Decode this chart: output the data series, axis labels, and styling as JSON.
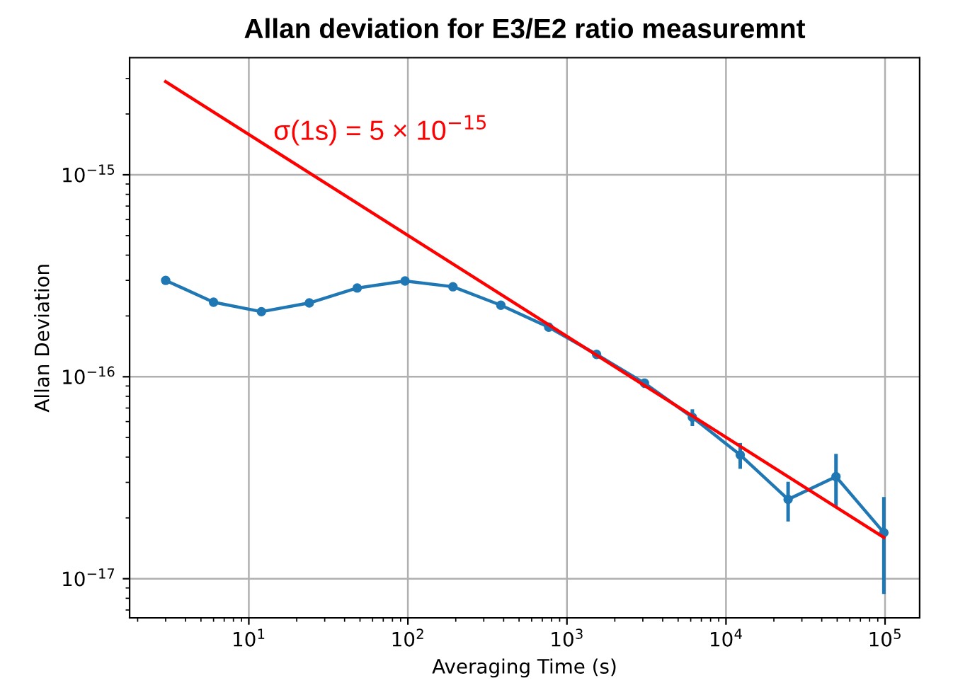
{
  "chart_data": {
    "type": "line",
    "title": "Allan deviation for E3/E2 ratio measuremnt",
    "xlabel": "Averaging Time (s)",
    "ylabel": "Allan Deviation",
    "log": "xy",
    "grid": true,
    "line_style": "solid",
    "xlim": [
      1.78,
      165000
    ],
    "ylim": [
      6.4e-18,
      3.8e-15
    ],
    "xticks": [
      {
        "value": 10,
        "label": "10$^{1}$"
      },
      {
        "value": 100,
        "label": "10$^{2}$"
      },
      {
        "value": 1000,
        "label": "10$^{3}$"
      },
      {
        "value": 10000,
        "label": "10$^{4}$"
      },
      {
        "value": 100000,
        "label": "10$^{5}$"
      }
    ],
    "yticks": [
      {
        "value": 1e-17,
        "label": "10$^{−17}$"
      },
      {
        "value": 1e-16,
        "label": "10$^{−16}$"
      },
      {
        "value": 1e-15,
        "label": "10$^{−15}$"
      }
    ],
    "series": [
      {
        "color": "#1f77b4",
        "marker": "circle",
        "x": [
          3,
          6,
          12,
          24,
          48,
          96,
          192,
          384,
          768,
          1536,
          3072,
          6144,
          12288,
          24576,
          49152,
          98304
        ],
        "values": [
          3e-16,
          2.34e-16,
          2.1e-16,
          2.32e-16,
          2.75e-16,
          2.98e-16,
          2.79e-16,
          2.26e-16,
          1.76e-16,
          1.29e-16,
          9.3e-17,
          6.3e-17,
          4.1e-17,
          2.47e-17,
          3.2e-17,
          1.69e-17
        ],
        "errors": [
          null,
          null,
          null,
          null,
          null,
          null,
          null,
          null,
          null,
          null,
          5e-18,
          6e-18,
          6e-18,
          5.5e-18,
          9.5e-18,
          8.5e-18
        ]
      },
      {
        "name": "σ(1s) = 5 × 10$^{−15}$",
        "color": "#ff0000",
        "marker": "none",
        "x": [
          3,
          98304
        ],
        "values": [
          2.89e-15,
          1.6e-17
        ]
      }
    ]
  }
}
